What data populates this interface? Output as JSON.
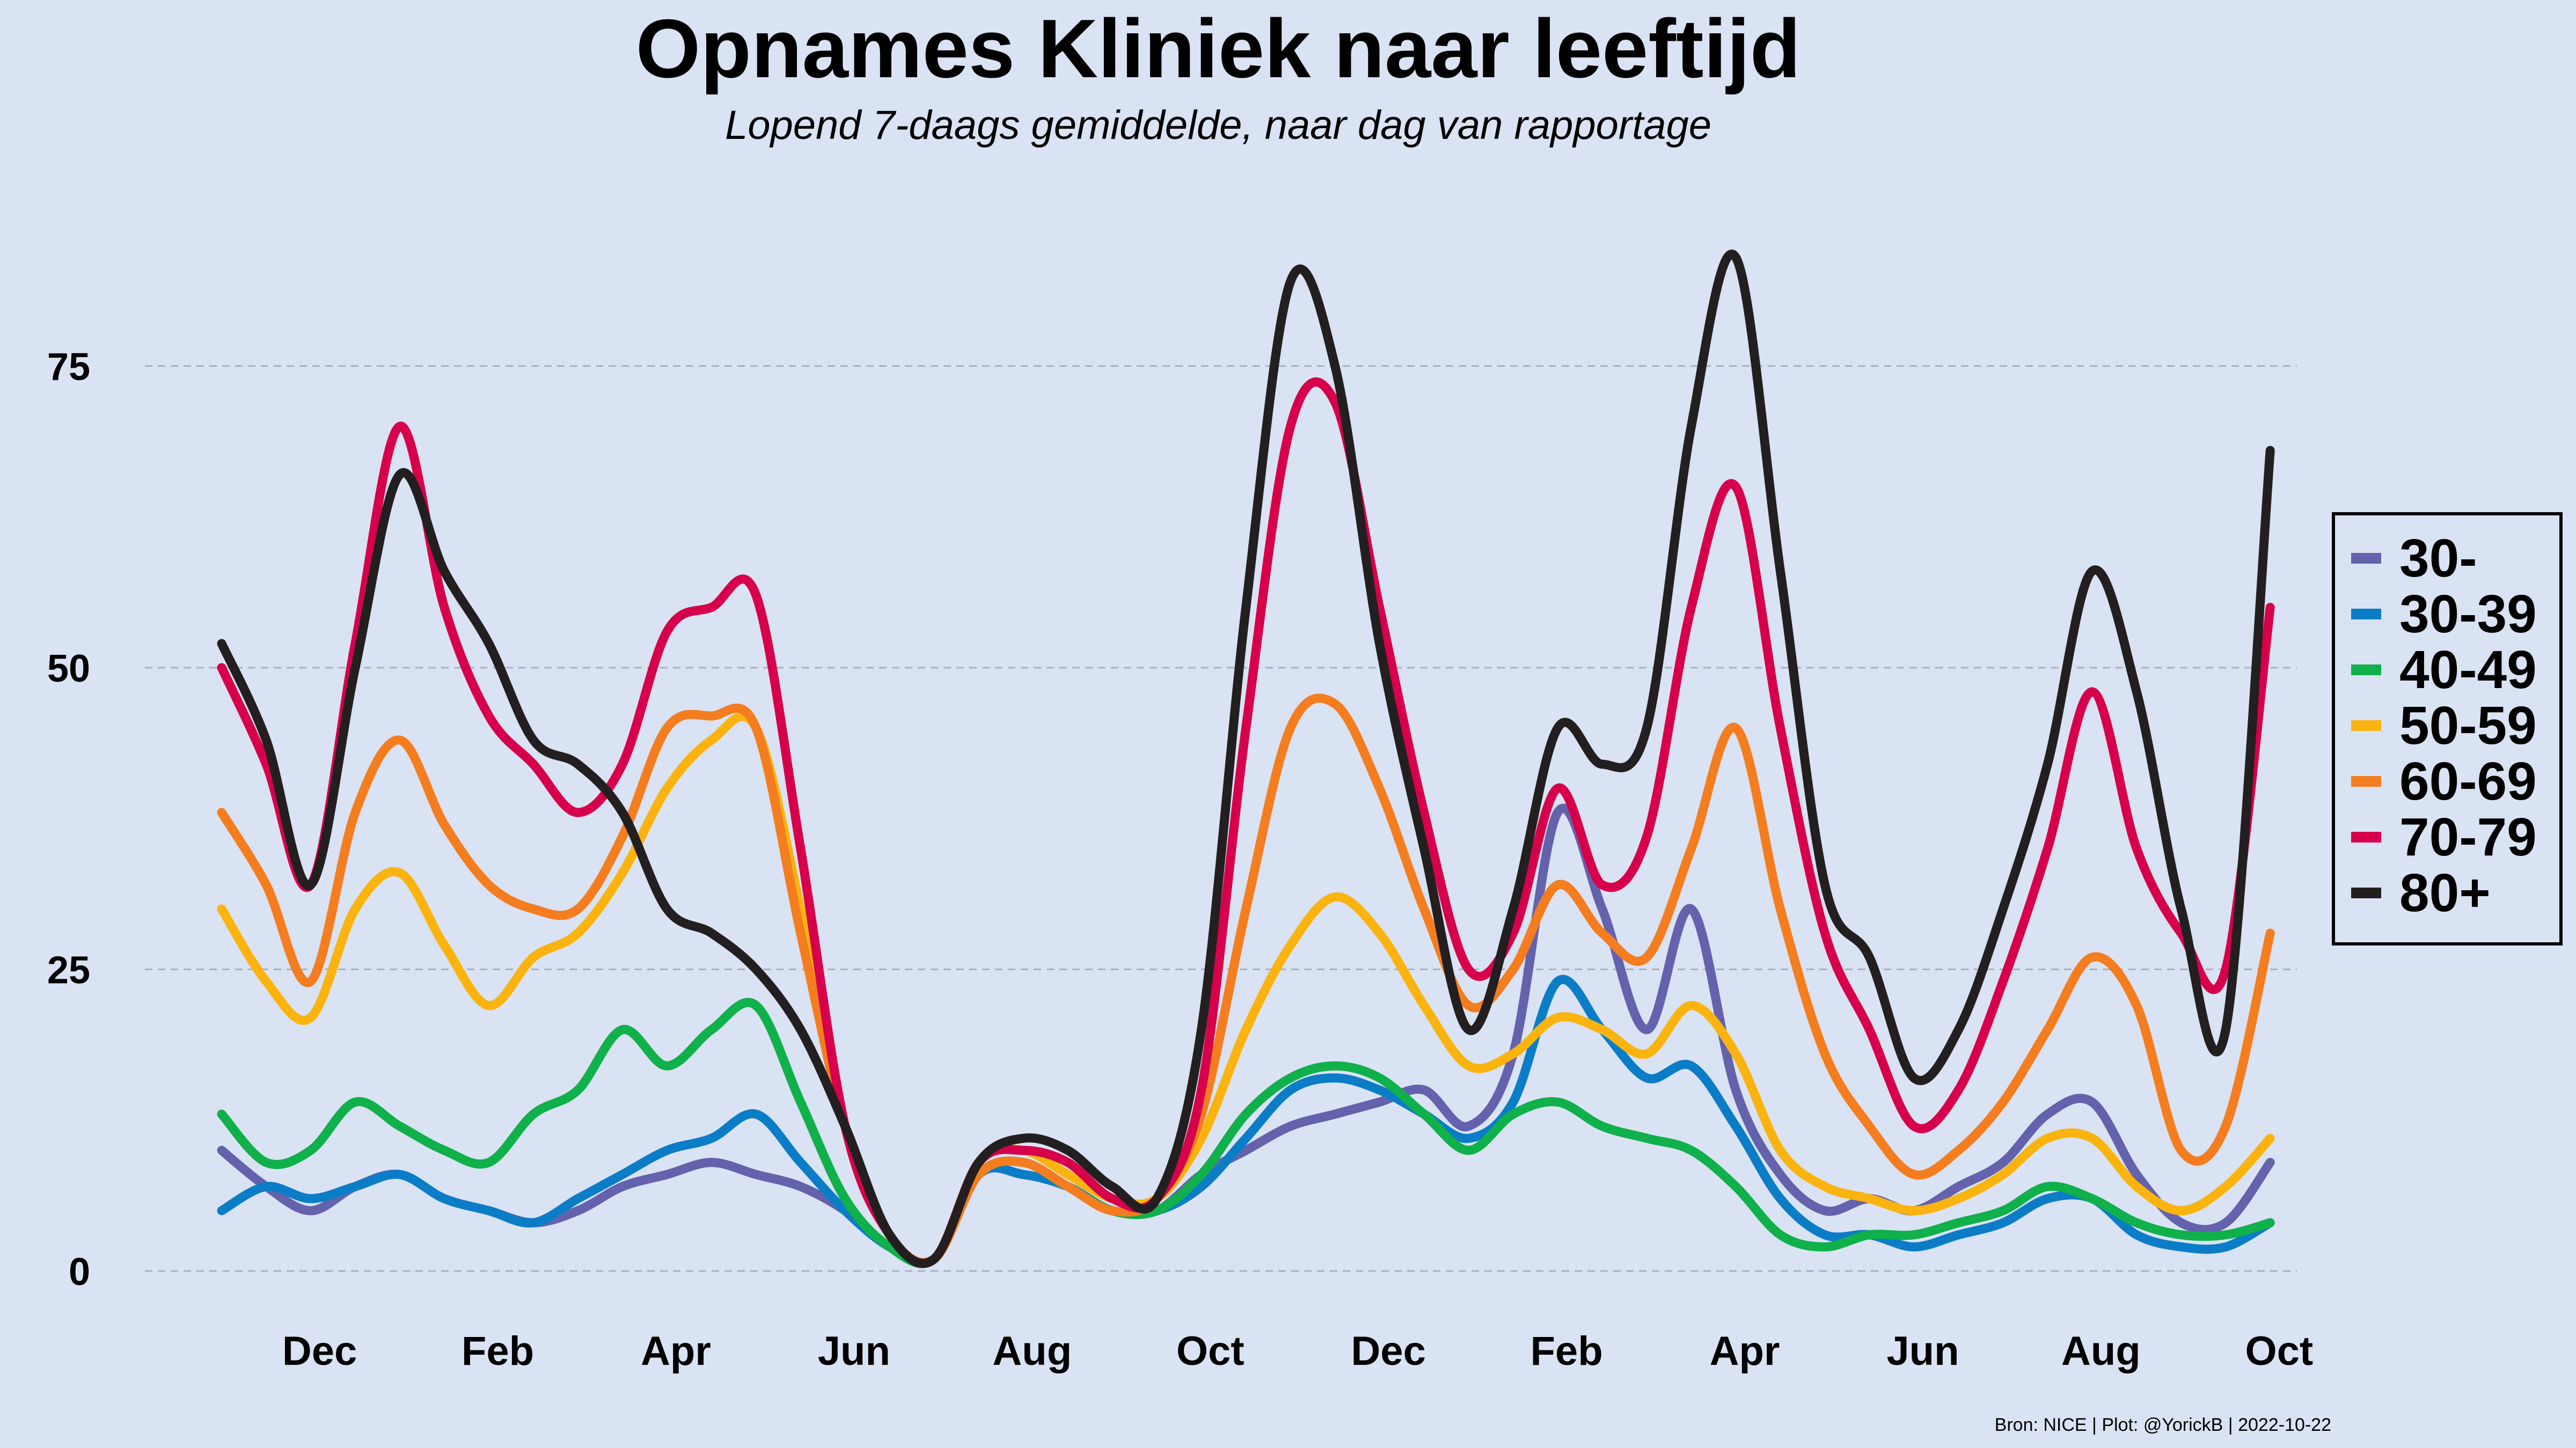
{
  "title": "Opnames Kliniek naar leeftijd",
  "subtitle": "Lopend 7-daags gemiddelde, naar dag van rapportage",
  "source": "Bron: NICE | Plot: @YorickB  |  2022-10-22",
  "chart_data": {
    "type": "line",
    "title": "Opnames Kliniek naar leeftijd",
    "subtitle": "Lopend 7-daags gemiddelde, naar dag van rapportage",
    "xlabel": "",
    "ylabel": "",
    "x_tick_labels": [
      "Dec",
      "Feb",
      "Apr",
      "Jun",
      "Aug",
      "Oct",
      "Dec",
      "Feb",
      "Apr",
      "Jun",
      "Aug",
      "Oct"
    ],
    "x_tick_months": [
      0,
      2,
      4,
      6,
      8,
      10,
      12,
      14,
      16,
      18,
      20,
      22
    ],
    "x_range_months": [
      -1.6,
      22.2
    ],
    "y_ticks": [
      0,
      25,
      50,
      75
    ],
    "ylim": [
      -6,
      92
    ],
    "grid": "horizontal dashed",
    "legend_position": "right",
    "x_unit": "months since 1 Dec 2020 (monthly estimates, smoothed)",
    "x": [
      -1.1,
      -0.6,
      -0.1,
      0.4,
      0.9,
      1.4,
      1.9,
      2.4,
      2.9,
      3.4,
      3.9,
      4.4,
      4.9,
      5.4,
      5.9,
      6.4,
      6.9,
      7.4,
      7.9,
      8.4,
      8.9,
      9.4,
      9.9,
      10.4,
      10.9,
      11.4,
      11.9,
      12.4,
      12.9,
      13.4,
      13.9,
      14.4,
      14.9,
      15.4,
      15.9,
      16.4,
      16.9,
      17.4,
      17.9,
      18.4,
      18.9,
      19.4,
      19.9,
      20.4,
      20.9,
      21.4,
      21.9
    ],
    "series": [
      {
        "name": "30-",
        "color": "#6462ac",
        "values": [
          10,
          7,
          5,
          7,
          8,
          6,
          5,
          4,
          5,
          7,
          8,
          9,
          8,
          7,
          5,
          2,
          1,
          8,
          8,
          7,
          5,
          5,
          8,
          10,
          12,
          13,
          14,
          15,
          12,
          18,
          38,
          30,
          20,
          30,
          15,
          8,
          5,
          6,
          5,
          7,
          9,
          13,
          14,
          8,
          4,
          4,
          9
        ]
      },
      {
        "name": "30-39",
        "color": "#0b7dc7",
        "values": [
          5,
          7,
          6,
          7,
          8,
          6,
          5,
          4,
          6,
          8,
          10,
          11,
          13,
          9,
          5,
          2,
          1,
          8,
          8,
          7,
          5,
          5,
          7,
          11,
          15,
          16,
          15,
          13,
          11,
          14,
          24,
          20,
          16,
          17,
          12,
          6,
          3,
          3,
          2,
          3,
          4,
          6,
          6,
          3,
          2,
          2,
          4
        ]
      },
      {
        "name": "40-49",
        "color": "#10b04a",
        "values": [
          13,
          9,
          10,
          14,
          12,
          10,
          9,
          13,
          15,
          20,
          17,
          20,
          22,
          14,
          6,
          2,
          1,
          8,
          9,
          7,
          5,
          5,
          8,
          13,
          16,
          17,
          16,
          13,
          10,
          13,
          14,
          12,
          11,
          10,
          7,
          3,
          2,
          3,
          3,
          4,
          5,
          7,
          6,
          4,
          3,
          3,
          4
        ]
      },
      {
        "name": "50-59",
        "color": "#fbb310",
        "values": [
          30,
          24,
          21,
          30,
          33,
          27,
          22,
          26,
          28,
          33,
          40,
          44,
          45,
          30,
          12,
          3,
          1,
          9,
          10,
          8,
          6,
          6,
          11,
          20,
          27,
          31,
          28,
          22,
          17,
          18,
          21,
          20,
          18,
          22,
          18,
          10,
          7,
          6,
          5,
          6,
          8,
          11,
          11,
          7,
          5,
          7,
          11
        ]
      },
      {
        "name": "60-69",
        "color": "#f47d20",
        "values": [
          38,
          32,
          24,
          38,
          44,
          37,
          32,
          30,
          30,
          36,
          45,
          46,
          45,
          28,
          12,
          3,
          1,
          8,
          9,
          7,
          5,
          6,
          13,
          30,
          45,
          47,
          40,
          30,
          22,
          25,
          32,
          28,
          26,
          35,
          45,
          30,
          18,
          12,
          8,
          10,
          14,
          20,
          26,
          22,
          10,
          12,
          28
        ]
      },
      {
        "name": "70-79",
        "color": "#d6004b",
        "values": [
          50,
          42,
          32,
          52,
          70,
          55,
          46,
          42,
          38,
          42,
          53,
          55,
          56,
          35,
          12,
          3,
          1,
          9,
          10,
          9,
          6,
          6,
          15,
          45,
          70,
          72,
          55,
          38,
          25,
          28,
          40,
          32,
          36,
          55,
          65,
          45,
          28,
          20,
          12,
          15,
          24,
          35,
          48,
          35,
          28,
          25,
          55
        ]
      },
      {
        "name": "80+",
        "color": "#231f20",
        "values": [
          52,
          44,
          32,
          50,
          66,
          58,
          52,
          44,
          42,
          38,
          30,
          28,
          25,
          20,
          12,
          3,
          1,
          9,
          11,
          10,
          7,
          6,
          20,
          55,
          82,
          75,
          52,
          35,
          20,
          30,
          45,
          42,
          45,
          70,
          84,
          58,
          32,
          26,
          16,
          20,
          30,
          42,
          58,
          48,
          30,
          20,
          68
        ]
      }
    ]
  }
}
